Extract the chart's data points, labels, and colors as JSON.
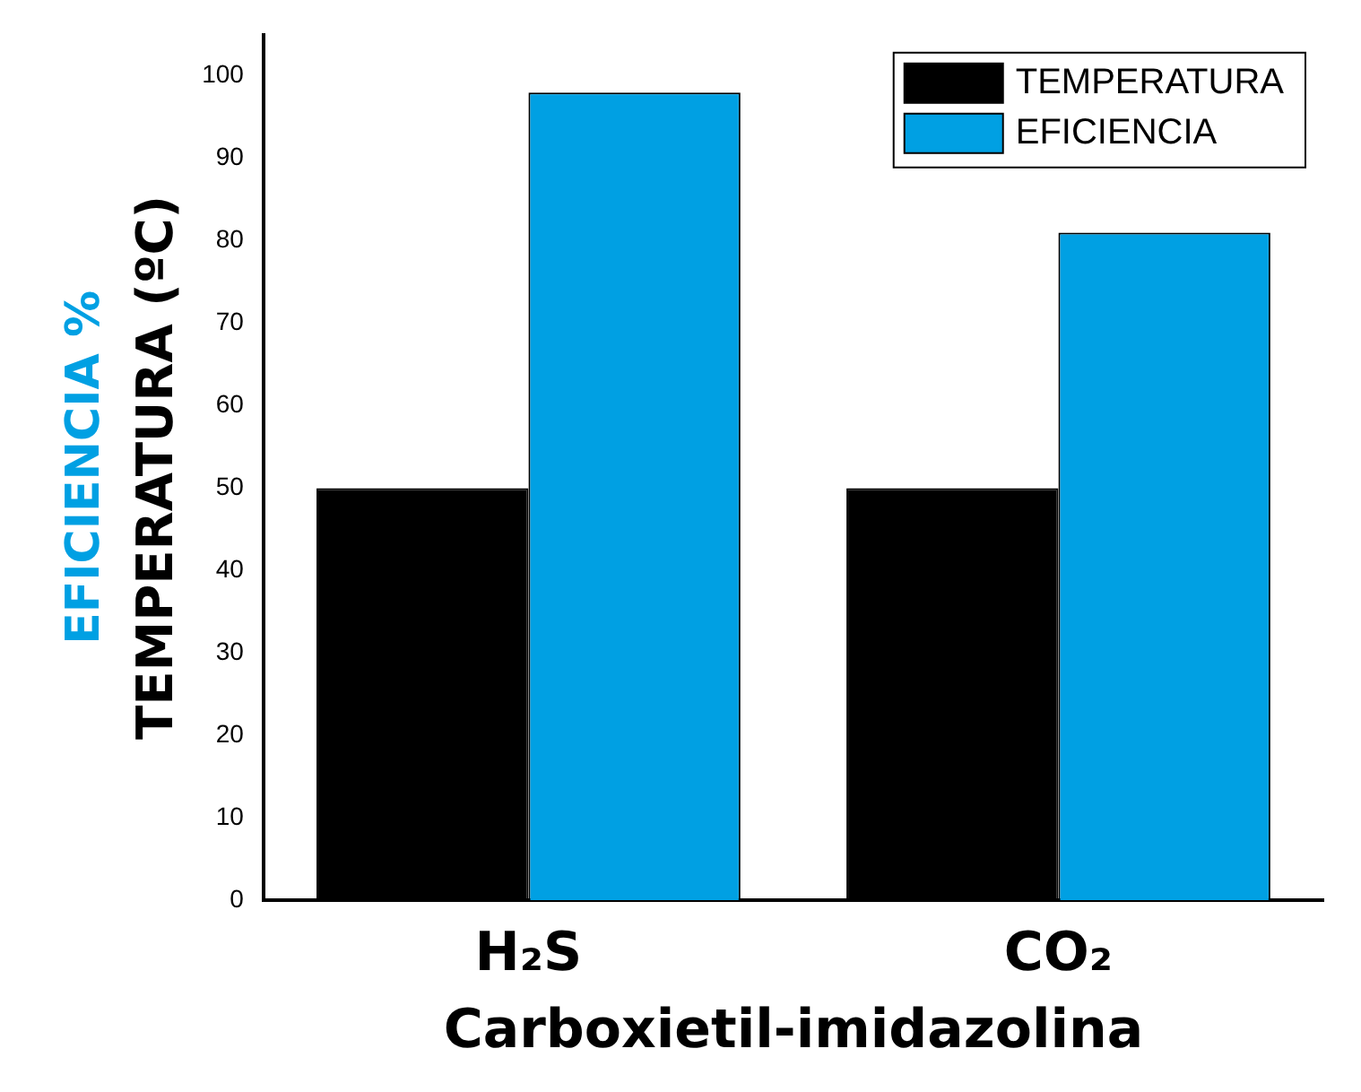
{
  "chart_data": {
    "type": "bar",
    "xlabel": "Carboxietil-imidazolina",
    "ylabel": "TEMPERATURA (ºC)",
    "annotations": [
      "EFICIENCIA %"
    ],
    "categories": [
      "H₂S",
      "CO₂"
    ],
    "series": [
      {
        "name": "TEMPERATURA",
        "color": "#000000",
        "values": [
          50,
          50
        ]
      },
      {
        "name": "EFICIENCIA",
        "color": "#00a0e3",
        "values": [
          98,
          81
        ]
      }
    ],
    "ylim": [
      0,
      105
    ],
    "yticks": [
      0,
      10,
      20,
      30,
      40,
      50,
      60,
      70,
      80,
      90,
      100
    ],
    "grid": false,
    "legend": "top right"
  }
}
